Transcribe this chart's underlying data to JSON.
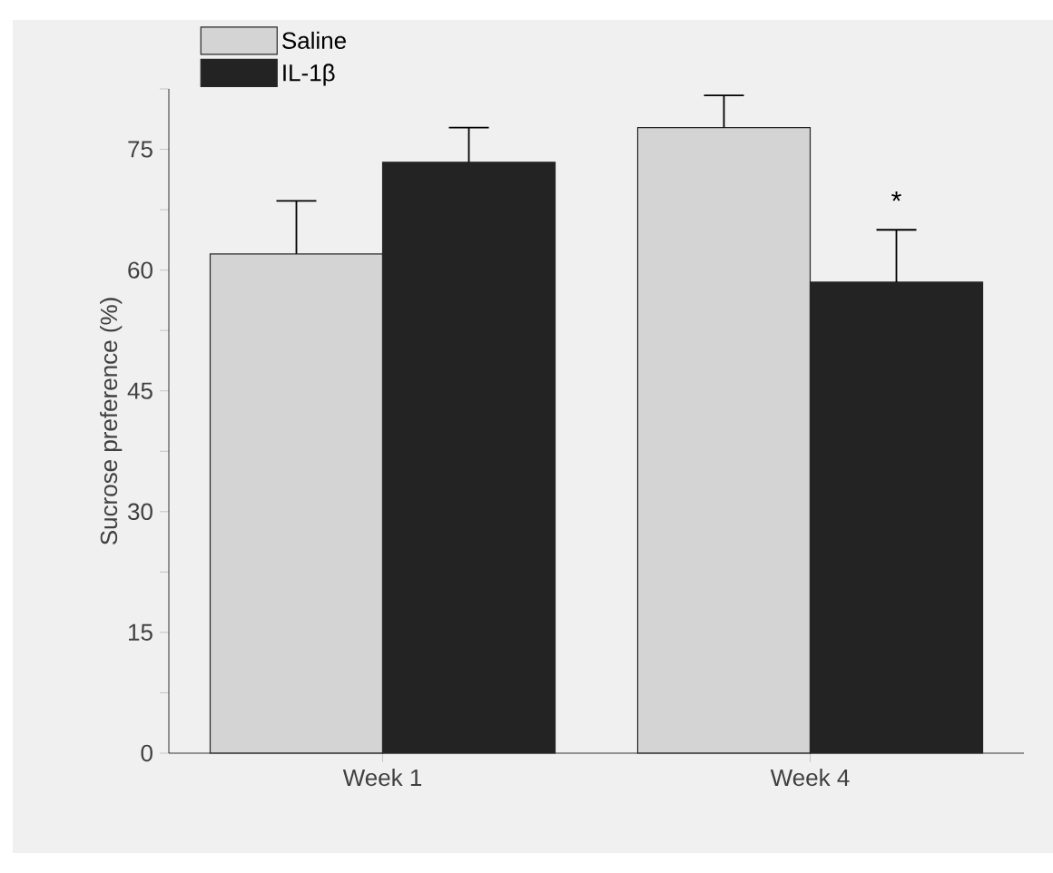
{
  "chart_data": {
    "type": "bar",
    "ylabel": "Sucrose preference (%)",
    "categories": [
      "Week 1",
      "Week 4"
    ],
    "series": [
      {
        "name": "Saline",
        "color": "#d4d4d4",
        "values": [
          62.0,
          77.7
        ],
        "errors": [
          [
            62.0,
            68.6
          ],
          [
            77.7,
            81.7
          ]
        ]
      },
      {
        "name": "IL-1β",
        "color": "#232323",
        "values": [
          73.4,
          58.5
        ],
        "errors": [
          [
            73.4,
            77.7
          ],
          [
            58.5,
            65.0
          ]
        ]
      }
    ],
    "ylim": [
      0,
      82.5
    ],
    "yticks": [
      0,
      {
        "value": 7.5,
        "label": null
      },
      15,
      {
        "value": 22.5,
        "label": null
      },
      30,
      {
        "value": 37.5,
        "label": null
      },
      45,
      {
        "value": 52.5,
        "label": null
      },
      60,
      {
        "value": 67.5,
        "label": null
      },
      75,
      {
        "value": 82.5,
        "label": null
      }
    ],
    "annotations": [
      {
        "text": "*",
        "x": "Week 4",
        "y": 68.6
      }
    ],
    "legend": "top left",
    "grid": false
  }
}
